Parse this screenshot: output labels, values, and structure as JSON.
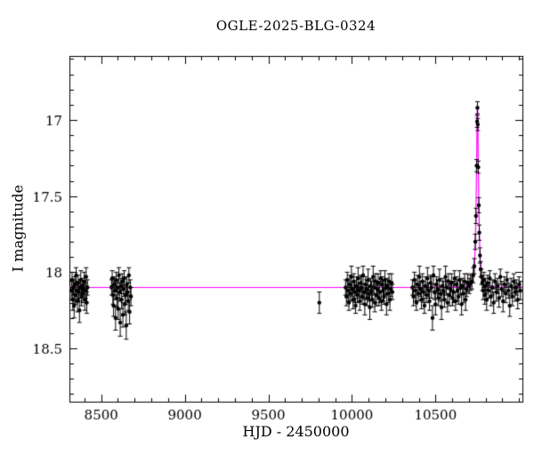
{
  "chart_data": {
    "type": "scatter",
    "title": "OGLE-2025-BLG-0324",
    "xlabel": "HJD - 2450000",
    "ylabel": "I magnitude",
    "xlim": [
      8310,
      11020
    ],
    "ylim": [
      16.58,
      18.85
    ],
    "y_inverted": true,
    "grid": false,
    "xticks_major": [
      8500,
      9000,
      9500,
      10000,
      10500
    ],
    "xtick_minor_step": 100,
    "yticks_major": [
      17,
      17.5,
      18,
      18.5
    ],
    "ytick_minor_step": 0.1,
    "point_color": "#000000",
    "model_color": "#ff00ff",
    "model": {
      "type": "paczynski",
      "t0": 10751,
      "tE": 13,
      "u0": 0.35,
      "baseline_mag": 18.1
    },
    "points": [
      [
        8322,
        18.12,
        0.06
      ],
      [
        8326,
        18.05,
        0.05
      ],
      [
        8330,
        18.18,
        0.07
      ],
      [
        8334,
        18.1,
        0.05
      ],
      [
        8338,
        18.22,
        0.08
      ],
      [
        8342,
        18.08,
        0.05
      ],
      [
        8346,
        18.15,
        0.06
      ],
      [
        8350,
        18.02,
        0.05
      ],
      [
        8354,
        18.12,
        0.06
      ],
      [
        8358,
        18.19,
        0.07
      ],
      [
        8362,
        18.07,
        0.05
      ],
      [
        8366,
        18.13,
        0.06
      ],
      [
        8370,
        18.25,
        0.08
      ],
      [
        8374,
        18.1,
        0.05
      ],
      [
        8378,
        18.05,
        0.06
      ],
      [
        8382,
        18.16,
        0.06
      ],
      [
        8386,
        18.09,
        0.05
      ],
      [
        8390,
        18.14,
        0.06
      ],
      [
        8394,
        18.11,
        0.05
      ],
      [
        8398,
        18.06,
        0.06
      ],
      [
        8402,
        18.18,
        0.07
      ],
      [
        8406,
        18.12,
        0.05
      ],
      [
        8410,
        18.03,
        0.06
      ],
      [
        8414,
        18.2,
        0.07
      ],
      [
        8418,
        18.1,
        0.05
      ],
      [
        8562,
        18.1,
        0.05
      ],
      [
        8566,
        18.04,
        0.05
      ],
      [
        8570,
        18.15,
        0.06
      ],
      [
        8574,
        18.22,
        0.07
      ],
      [
        8578,
        18.08,
        0.05
      ],
      [
        8582,
        18.12,
        0.06
      ],
      [
        8586,
        18.3,
        0.08
      ],
      [
        8590,
        18.05,
        0.05
      ],
      [
        8594,
        18.17,
        0.06
      ],
      [
        8598,
        18.1,
        0.05
      ],
      [
        8602,
        18.24,
        0.07
      ],
      [
        8606,
        18.02,
        0.05
      ],
      [
        8610,
        18.13,
        0.06
      ],
      [
        8614,
        18.33,
        0.09
      ],
      [
        8618,
        18.09,
        0.05
      ],
      [
        8622,
        18.18,
        0.06
      ],
      [
        8626,
        18.06,
        0.05
      ],
      [
        8630,
        18.28,
        0.08
      ],
      [
        8634,
        18.11,
        0.05
      ],
      [
        8638,
        18.04,
        0.05
      ],
      [
        8642,
        18.21,
        0.07
      ],
      [
        8646,
        18.15,
        0.06
      ],
      [
        8650,
        18.35,
        0.09
      ],
      [
        8654,
        18.08,
        0.05
      ],
      [
        8658,
        18.13,
        0.06
      ],
      [
        8662,
        18.19,
        0.06
      ],
      [
        8666,
        18.02,
        0.05
      ],
      [
        8670,
        18.26,
        0.08
      ],
      [
        8674,
        18.1,
        0.05
      ],
      [
        8678,
        18.16,
        0.06
      ],
      [
        9805,
        18.2,
        0.07
      ],
      [
        9962,
        18.1,
        0.05
      ],
      [
        9967,
        18.16,
        0.06
      ],
      [
        9972,
        18.05,
        0.05
      ],
      [
        9977,
        18.12,
        0.07
      ],
      [
        9982,
        18.2,
        0.05
      ],
      [
        9987,
        18.08,
        0.06
      ],
      [
        9992,
        18.14,
        0.05
      ],
      [
        9997,
        18.03,
        0.07
      ],
      [
        10002,
        18.11,
        0.05
      ],
      [
        10007,
        18.18,
        0.06
      ],
      [
        10012,
        18.06,
        0.05
      ],
      [
        10017,
        18.13,
        0.07
      ],
      [
        10022,
        18.22,
        0.05
      ],
      [
        10027,
        18.09,
        0.06
      ],
      [
        10032,
        18.15,
        0.05
      ],
      [
        10037,
        18.04,
        0.07
      ],
      [
        10042,
        18.12,
        0.05
      ],
      [
        10047,
        18.19,
        0.06
      ],
      [
        10052,
        18.07,
        0.05
      ],
      [
        10057,
        18.1,
        0.07
      ],
      [
        10062,
        18.16,
        0.05
      ],
      [
        10067,
        18.02,
        0.06
      ],
      [
        10072,
        18.13,
        0.05
      ],
      [
        10077,
        18.21,
        0.07
      ],
      [
        10082,
        18.08,
        0.05
      ],
      [
        10087,
        18.11,
        0.06
      ],
      [
        10092,
        18.17,
        0.05
      ],
      [
        10097,
        18.05,
        0.07
      ],
      [
        10102,
        18.14,
        0.05
      ],
      [
        10107,
        18.23,
        0.08
      ],
      [
        10112,
        18.09,
        0.05
      ],
      [
        10117,
        18.12,
        0.06
      ],
      [
        10122,
        18.18,
        0.05
      ],
      [
        10127,
        18.03,
        0.07
      ],
      [
        10132,
        18.1,
        0.05
      ],
      [
        10137,
        18.2,
        0.06
      ],
      [
        10142,
        18.06,
        0.05
      ],
      [
        10147,
        18.15,
        0.07
      ],
      [
        10152,
        18.11,
        0.05
      ],
      [
        10157,
        18.07,
        0.06
      ],
      [
        10162,
        18.17,
        0.05
      ],
      [
        10167,
        18.13,
        0.07
      ],
      [
        10172,
        18.04,
        0.05
      ],
      [
        10177,
        18.19,
        0.06
      ],
      [
        10182,
        18.08,
        0.05
      ],
      [
        10187,
        18.12,
        0.07
      ],
      [
        10192,
        18.16,
        0.05
      ],
      [
        10197,
        18.05,
        0.06
      ],
      [
        10202,
        18.1,
        0.05
      ],
      [
        10207,
        18.21,
        0.07
      ],
      [
        10212,
        18.09,
        0.05
      ],
      [
        10217,
        18.14,
        0.06
      ],
      [
        10222,
        18.06,
        0.05
      ],
      [
        10227,
        18.18,
        0.07
      ],
      [
        10232,
        18.11,
        0.05
      ],
      [
        10237,
        18.07,
        0.06
      ],
      [
        10242,
        18.13,
        0.05
      ],
      [
        10362,
        18.1,
        0.05
      ],
      [
        10368,
        18.16,
        0.06
      ],
      [
        10374,
        18.05,
        0.05
      ],
      [
        10380,
        18.12,
        0.07
      ],
      [
        10386,
        18.2,
        0.05
      ],
      [
        10392,
        18.08,
        0.06
      ],
      [
        10398,
        18.14,
        0.05
      ],
      [
        10404,
        18.03,
        0.07
      ],
      [
        10410,
        18.11,
        0.05
      ],
      [
        10416,
        18.18,
        0.06
      ],
      [
        10422,
        18.06,
        0.05
      ],
      [
        10428,
        18.13,
        0.07
      ],
      [
        10434,
        18.22,
        0.05
      ],
      [
        10440,
        18.09,
        0.06
      ],
      [
        10446,
        18.15,
        0.05
      ],
      [
        10452,
        18.04,
        0.07
      ],
      [
        10458,
        18.12,
        0.05
      ],
      [
        10464,
        18.19,
        0.06
      ],
      [
        10470,
        18.07,
        0.05
      ],
      [
        10476,
        18.1,
        0.07
      ],
      [
        10482,
        18.3,
        0.08
      ],
      [
        10488,
        18.02,
        0.06
      ],
      [
        10494,
        18.13,
        0.05
      ],
      [
        10500,
        18.21,
        0.07
      ],
      [
        10506,
        18.08,
        0.05
      ],
      [
        10512,
        18.11,
        0.06
      ],
      [
        10518,
        18.17,
        0.05
      ],
      [
        10524,
        18.05,
        0.07
      ],
      [
        10530,
        18.14,
        0.05
      ],
      [
        10536,
        18.23,
        0.08
      ],
      [
        10542,
        18.09,
        0.05
      ],
      [
        10548,
        18.12,
        0.06
      ],
      [
        10554,
        18.18,
        0.05
      ],
      [
        10560,
        18.03,
        0.07
      ],
      [
        10566,
        18.1,
        0.05
      ],
      [
        10572,
        18.2,
        0.06
      ],
      [
        10578,
        18.06,
        0.05
      ],
      [
        10584,
        18.15,
        0.07
      ],
      [
        10590,
        18.11,
        0.05
      ],
      [
        10596,
        18.07,
        0.06
      ],
      [
        10602,
        18.17,
        0.05
      ],
      [
        10608,
        18.13,
        0.07
      ],
      [
        10614,
        18.04,
        0.05
      ],
      [
        10620,
        18.19,
        0.06
      ],
      [
        10626,
        18.08,
        0.05
      ],
      [
        10632,
        18.12,
        0.07
      ],
      [
        10638,
        18.16,
        0.05
      ],
      [
        10644,
        18.05,
        0.06
      ],
      [
        10650,
        18.1,
        0.05
      ],
      [
        10656,
        18.21,
        0.07
      ],
      [
        10662,
        18.09,
        0.05
      ],
      [
        10668,
        18.14,
        0.06
      ],
      [
        10674,
        18.06,
        0.05
      ],
      [
        10680,
        18.18,
        0.07
      ],
      [
        10686,
        18.11,
        0.05
      ],
      [
        10692,
        18.07,
        0.06
      ],
      [
        10702,
        18.09,
        0.05
      ],
      [
        10710,
        18.07,
        0.05
      ],
      [
        10718,
        18.06,
        0.05
      ],
      [
        10726,
        18.02,
        0.05
      ],
      [
        10732,
        17.96,
        0.05
      ],
      [
        10738,
        17.8,
        0.05
      ],
      [
        10742,
        17.63,
        0.05
      ],
      [
        10746,
        17.3,
        0.04
      ],
      [
        10749,
        17.01,
        0.04
      ],
      [
        10751,
        16.92,
        0.04
      ],
      [
        10753,
        17.03,
        0.04
      ],
      [
        10756,
        17.31,
        0.04
      ],
      [
        10759,
        17.56,
        0.05
      ],
      [
        10762,
        17.74,
        0.05
      ],
      [
        10766,
        17.89,
        0.05
      ],
      [
        10770,
        17.98,
        0.05
      ],
      [
        10775,
        18.03,
        0.05
      ],
      [
        10780,
        18.07,
        0.05
      ],
      [
        10785,
        18.12,
        0.06
      ],
      [
        10790,
        18.05,
        0.05
      ],
      [
        10795,
        18.15,
        0.06
      ],
      [
        10800,
        18.09,
        0.05
      ],
      [
        10806,
        18.18,
        0.07
      ],
      [
        10812,
        18.07,
        0.05
      ],
      [
        10818,
        18.12,
        0.05
      ],
      [
        10825,
        18.04,
        0.05
      ],
      [
        10832,
        18.16,
        0.06
      ],
      [
        10840,
        18.1,
        0.05
      ],
      [
        10848,
        18.2,
        0.07
      ],
      [
        10856,
        18.06,
        0.05
      ],
      [
        10864,
        18.13,
        0.06
      ],
      [
        10872,
        18.09,
        0.05
      ],
      [
        10880,
        18.17,
        0.06
      ],
      [
        10888,
        18.03,
        0.05
      ],
      [
        10896,
        18.11,
        0.05
      ],
      [
        10904,
        18.19,
        0.07
      ],
      [
        10912,
        18.08,
        0.05
      ],
      [
        10920,
        18.14,
        0.06
      ],
      [
        10928,
        18.05,
        0.05
      ],
      [
        10936,
        18.12,
        0.05
      ],
      [
        10944,
        18.22,
        0.07
      ],
      [
        10952,
        18.09,
        0.05
      ],
      [
        10960,
        18.16,
        0.06
      ],
      [
        10968,
        18.06,
        0.05
      ],
      [
        10976,
        18.13,
        0.06
      ],
      [
        10984,
        18.1,
        0.05
      ],
      [
        10992,
        18.18,
        0.06
      ],
      [
        11000,
        18.08,
        0.05
      ],
      [
        11008,
        18.12,
        0.06
      ]
    ]
  }
}
